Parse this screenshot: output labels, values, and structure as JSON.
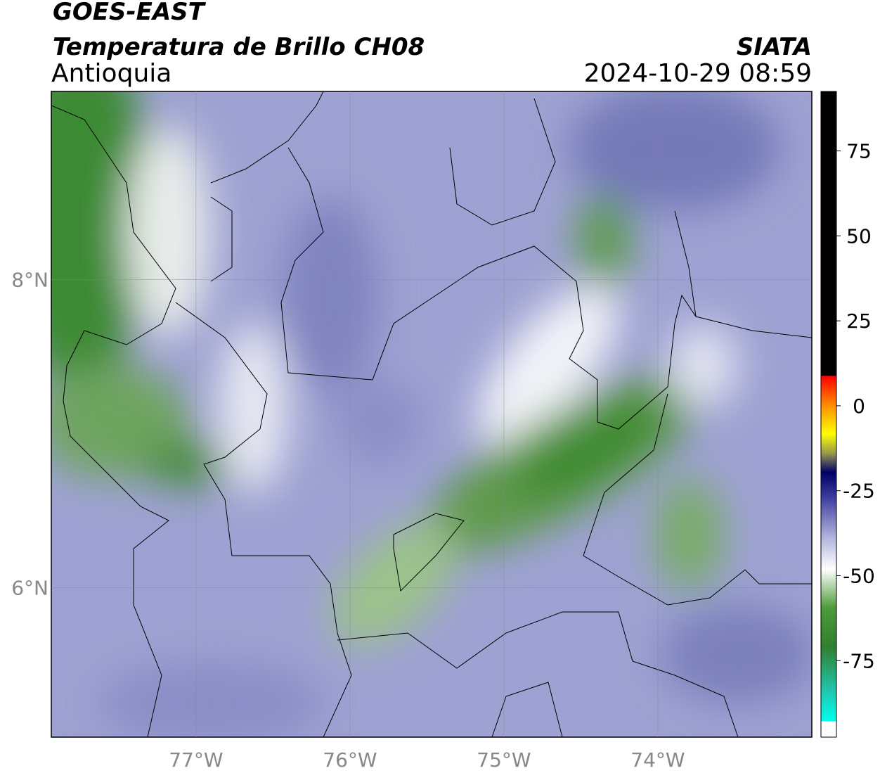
{
  "header": {
    "title": "GOES-EAST",
    "subtitle": "Temperatura de Brillo CH08",
    "region": "Antioquia",
    "source": "SIATA",
    "datetime": "2024-10-29 08:59"
  },
  "map": {
    "xlim": [
      -77.94,
      -73.0
    ],
    "ylim": [
      5.03,
      9.22
    ],
    "xticks": [
      {
        "value": -77,
        "label": "77°W"
      },
      {
        "value": -76,
        "label": "76°W"
      },
      {
        "value": -75,
        "label": "75°W"
      },
      {
        "value": -74,
        "label": "74°W"
      }
    ],
    "yticks": [
      {
        "value": 8,
        "label": "8°N"
      },
      {
        "value": 6,
        "label": "6°N"
      }
    ]
  },
  "colorbar": {
    "lim": [
      -97.5,
      92.5
    ],
    "ticks": [
      75,
      50,
      25,
      0,
      -25,
      -50,
      -75
    ]
  }
}
